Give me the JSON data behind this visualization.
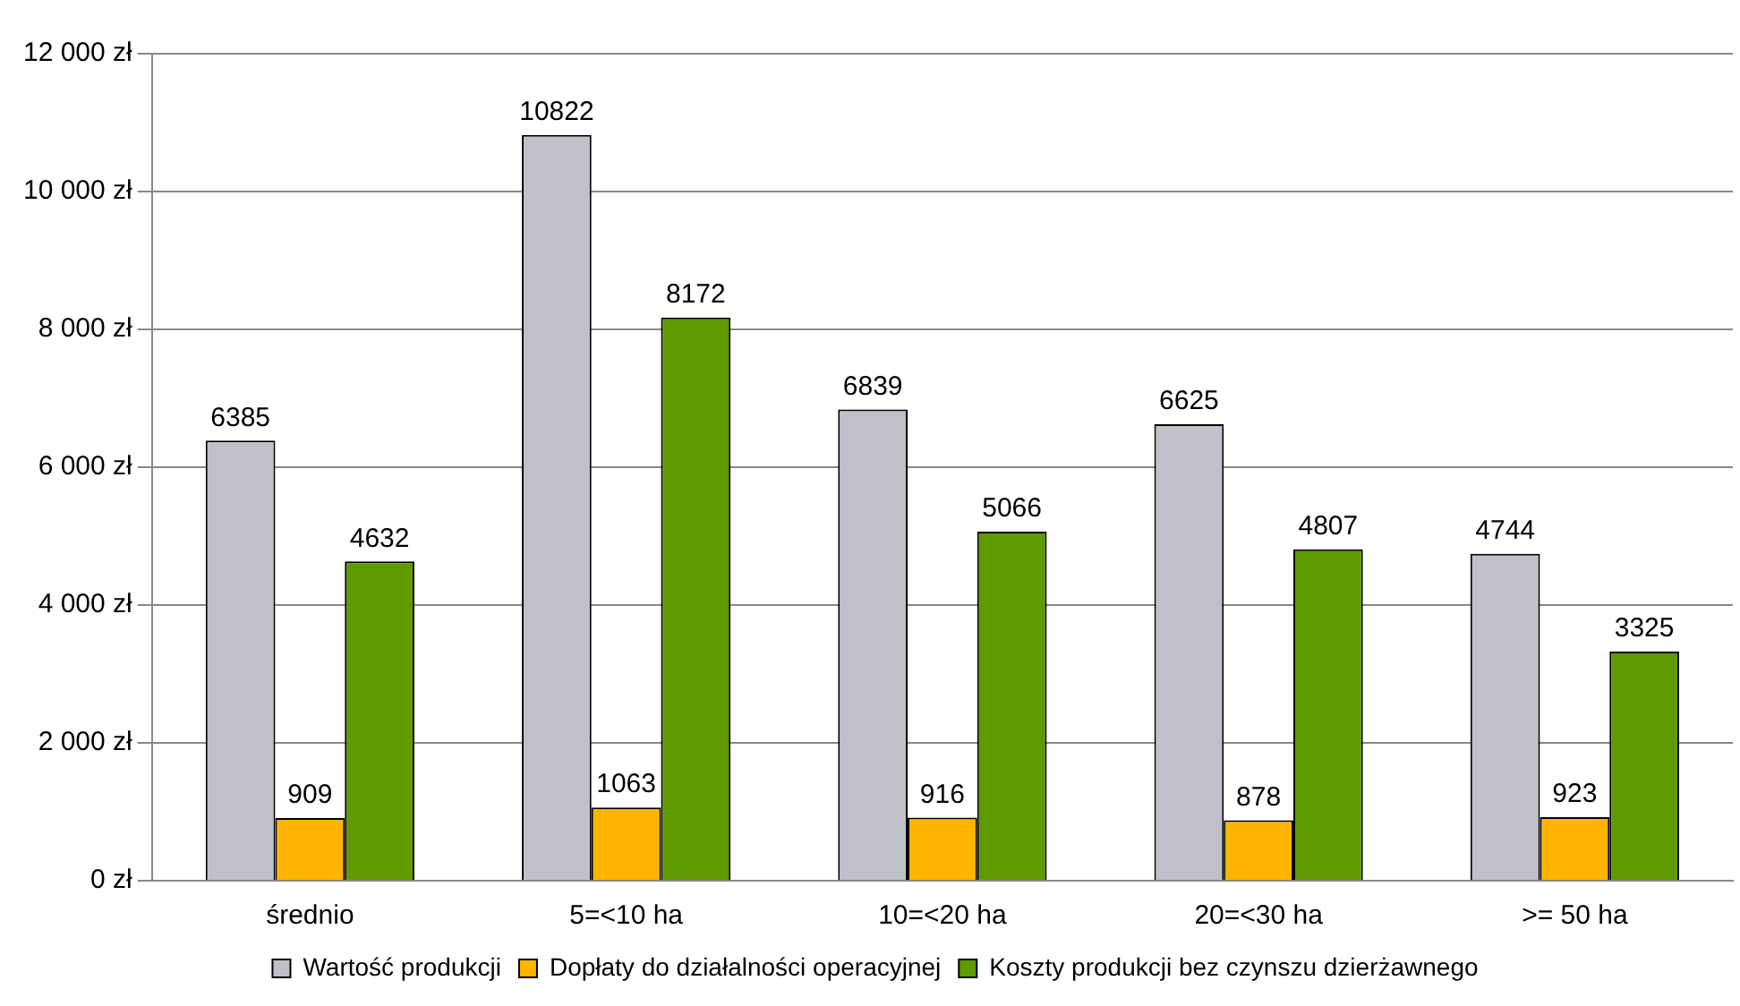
{
  "chart_data": {
    "type": "bar",
    "categories": [
      "średnio",
      "5=<10 ha",
      "10=<20 ha",
      "20=<30 ha",
      ">= 50 ha"
    ],
    "series": [
      {
        "name": "Wartość produkcji",
        "color": "#c0c0c8",
        "values": [
          6385,
          10822,
          6839,
          6625,
          4744
        ]
      },
      {
        "name": "Dopłaty do działalności operacyjnej",
        "color": "#ffb400",
        "values": [
          909,
          1063,
          916,
          878,
          923
        ]
      },
      {
        "name": "Koszty produkcji bez czynszu dzierżawnego",
        "color": "#5f9a00",
        "values": [
          4632,
          8172,
          5066,
          4807,
          3325
        ]
      }
    ],
    "ylim": [
      0,
      12000
    ],
    "yticks": [
      {
        "value": 0,
        "label": "0 zł"
      },
      {
        "value": 2000,
        "label": "2 000 zł"
      },
      {
        "value": 4000,
        "label": "4 000 zł"
      },
      {
        "value": 6000,
        "label": "6 000 zł"
      },
      {
        "value": 8000,
        "label": "8 000 zł"
      },
      {
        "value": 10000,
        "label": "10 000 zł"
      },
      {
        "value": 12000,
        "label": "12 000 zł"
      }
    ],
    "grid": "y",
    "legend": "bottom",
    "data_labels": true
  }
}
